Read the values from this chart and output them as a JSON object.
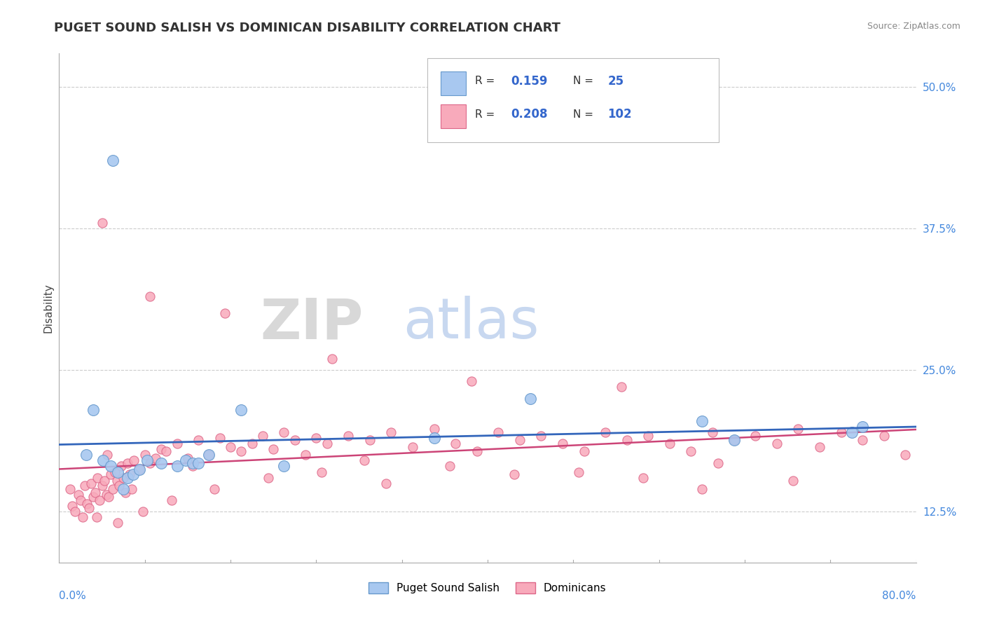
{
  "title": "PUGET SOUND SALISH VS DOMINICAN DISABILITY CORRELATION CHART",
  "source": "Source: ZipAtlas.com",
  "ylabel": "Disability",
  "ylabel_right_ticks": [
    12.5,
    25.0,
    37.5,
    50.0
  ],
  "xlim": [
    0.0,
    80.0
  ],
  "ylim": [
    8.0,
    53.0
  ],
  "series1_name": "Puget Sound Salish",
  "series1_R": 0.159,
  "series1_N": 25,
  "series1_scatter_color": "#a8c8f0",
  "series1_edge_color": "#6699cc",
  "series1_line_color": "#3366bb",
  "series2_name": "Dominicans",
  "series2_R": 0.208,
  "series2_N": 102,
  "series2_scatter_color": "#f8aabb",
  "series2_edge_color": "#dd6688",
  "series2_line_color": "#cc4477",
  "background_color": "#ffffff",
  "grid_color": "#cccccc",
  "title_color": "#333333",
  "title_fontsize": 13,
  "series1_x": [
    2.5,
    3.2,
    4.1,
    4.8,
    5.5,
    6.0,
    6.4,
    6.9,
    7.5,
    8.2,
    9.5,
    11.0,
    11.8,
    12.5,
    14.0,
    17.0,
    21.0,
    44.0,
    60.0,
    63.0,
    74.0,
    75.0,
    5.0,
    13.0,
    35.0
  ],
  "series1_y": [
    17.5,
    21.5,
    17.0,
    16.5,
    16.0,
    14.5,
    15.5,
    15.8,
    16.2,
    17.0,
    16.8,
    16.5,
    17.0,
    16.8,
    17.5,
    21.5,
    16.5,
    22.5,
    20.5,
    18.8,
    19.5,
    20.0,
    43.5,
    16.8,
    19.0
  ],
  "series2_x": [
    1.0,
    1.2,
    1.5,
    1.8,
    2.0,
    2.2,
    2.4,
    2.6,
    2.8,
    3.0,
    3.2,
    3.4,
    3.6,
    3.8,
    4.0,
    4.2,
    4.4,
    4.6,
    4.8,
    5.0,
    5.2,
    5.4,
    5.6,
    5.8,
    6.0,
    6.2,
    6.4,
    6.6,
    6.8,
    7.0,
    7.5,
    8.0,
    8.5,
    9.0,
    9.5,
    10.0,
    11.0,
    12.0,
    13.0,
    14.0,
    15.0,
    16.0,
    17.0,
    18.0,
    19.0,
    20.0,
    21.0,
    22.0,
    23.0,
    24.0,
    25.0,
    27.0,
    29.0,
    31.0,
    33.0,
    35.0,
    37.0,
    39.0,
    41.0,
    43.0,
    45.0,
    47.0,
    49.0,
    51.0,
    53.0,
    55.0,
    57.0,
    59.0,
    61.0,
    63.0,
    65.0,
    67.0,
    69.0,
    71.0,
    73.0,
    75.0,
    77.0,
    79.0,
    3.5,
    5.5,
    7.8,
    10.5,
    14.5,
    19.5,
    24.5,
    30.5,
    36.5,
    42.5,
    48.5,
    54.5,
    61.5,
    68.5,
    4.0,
    8.5,
    15.5,
    25.5,
    38.5,
    52.5,
    4.5,
    12.5,
    28.5,
    60.0
  ],
  "series2_y": [
    14.5,
    13.0,
    12.5,
    14.0,
    13.5,
    12.0,
    14.8,
    13.2,
    12.8,
    15.0,
    13.8,
    14.2,
    15.5,
    13.5,
    14.8,
    15.2,
    14.0,
    13.8,
    15.8,
    14.5,
    16.0,
    15.2,
    14.8,
    16.5,
    15.5,
    14.2,
    16.8,
    15.8,
    14.5,
    17.0,
    16.2,
    17.5,
    16.8,
    17.2,
    18.0,
    17.8,
    18.5,
    17.2,
    18.8,
    17.5,
    19.0,
    18.2,
    17.8,
    18.5,
    19.2,
    18.0,
    19.5,
    18.8,
    17.5,
    19.0,
    18.5,
    19.2,
    18.8,
    19.5,
    18.2,
    19.8,
    18.5,
    17.8,
    19.5,
    18.8,
    19.2,
    18.5,
    17.8,
    19.5,
    18.8,
    19.2,
    18.5,
    17.8,
    19.5,
    18.8,
    19.2,
    18.5,
    19.8,
    18.2,
    19.5,
    18.8,
    19.2,
    17.5,
    12.0,
    11.5,
    12.5,
    13.5,
    14.5,
    15.5,
    16.0,
    15.0,
    16.5,
    15.8,
    16.0,
    15.5,
    16.8,
    15.2,
    38.0,
    31.5,
    30.0,
    26.0,
    24.0,
    23.5,
    17.5,
    16.5,
    17.0,
    14.5
  ]
}
